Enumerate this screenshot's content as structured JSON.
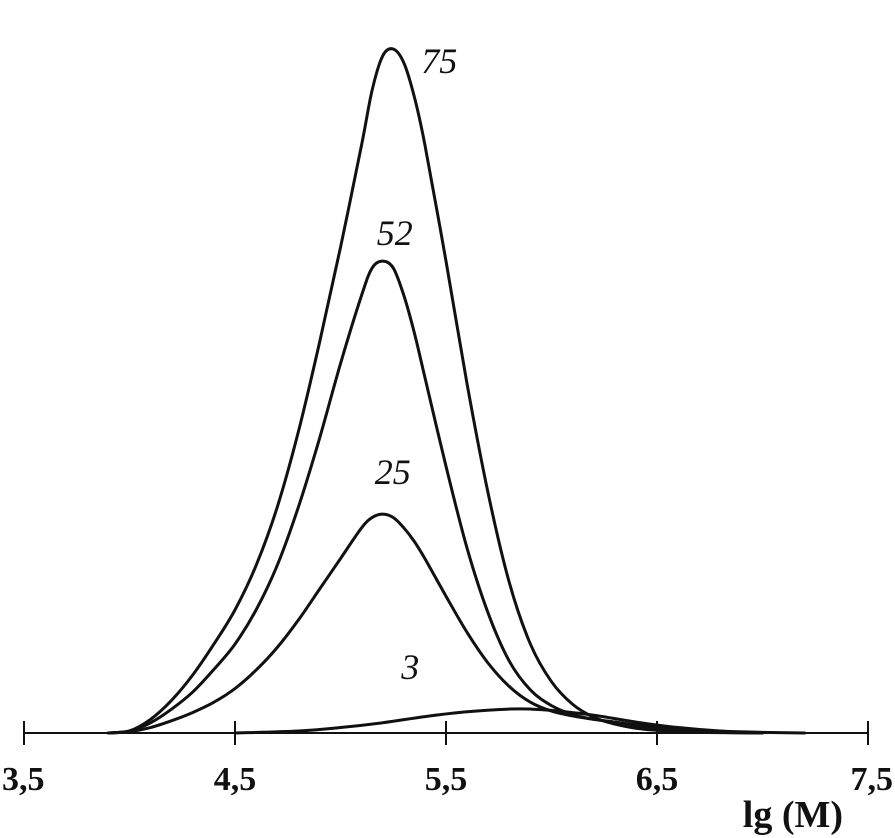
{
  "chart_data": {
    "type": "line",
    "title": "",
    "xlabel": "lg (M)",
    "ylabel": "",
    "xlim": [
      3.5,
      7.5
    ],
    "ylim": [
      0,
      1.06
    ],
    "x_ticks": [
      3.5,
      4.5,
      5.5,
      6.5,
      7.5
    ],
    "x_tick_labels": [
      "3,5",
      "4,5",
      "5,5",
      "6,5",
      "7,5"
    ],
    "grid": false,
    "legend": "none",
    "series": [
      {
        "name": "75",
        "x": [
          3.9,
          4.0,
          4.1,
          4.2,
          4.3,
          4.4,
          4.5,
          4.6,
          4.7,
          4.8,
          4.9,
          5.0,
          5.1,
          5.15,
          5.2,
          5.25,
          5.3,
          5.35,
          5.4,
          5.5,
          5.6,
          5.7,
          5.8,
          5.9,
          6.0,
          6.1,
          6.2,
          6.3,
          6.4,
          6.5,
          6.6,
          6.7,
          6.8,
          7.0
        ],
        "y": [
          0.0,
          0.003,
          0.02,
          0.048,
          0.085,
          0.13,
          0.18,
          0.245,
          0.33,
          0.44,
          0.57,
          0.71,
          0.86,
          0.94,
          0.99,
          1.0,
          0.98,
          0.93,
          0.86,
          0.69,
          0.51,
          0.35,
          0.22,
          0.13,
          0.075,
          0.042,
          0.023,
          0.013,
          0.007,
          0.004,
          0.002,
          0.001,
          0.0005,
          0.0
        ]
      },
      {
        "name": "52",
        "x": [
          3.9,
          4.0,
          4.1,
          4.2,
          4.3,
          4.4,
          4.5,
          4.6,
          4.7,
          4.8,
          4.9,
          5.0,
          5.1,
          5.15,
          5.2,
          5.25,
          5.3,
          5.35,
          5.4,
          5.5,
          5.6,
          5.7,
          5.8,
          5.9,
          6.0,
          6.1,
          6.2,
          6.3,
          6.4,
          6.5,
          6.6,
          6.7,
          6.8,
          7.0
        ],
        "y": [
          0.0,
          0.003,
          0.015,
          0.035,
          0.06,
          0.093,
          0.13,
          0.18,
          0.245,
          0.33,
          0.43,
          0.54,
          0.64,
          0.68,
          0.69,
          0.68,
          0.64,
          0.585,
          0.52,
          0.39,
          0.27,
          0.175,
          0.105,
          0.063,
          0.04,
          0.027,
          0.02,
          0.016,
          0.012,
          0.009,
          0.005,
          0.003,
          0.0015,
          0.0
        ]
      },
      {
        "name": "25",
        "x": [
          3.9,
          4.0,
          4.1,
          4.2,
          4.3,
          4.4,
          4.5,
          4.6,
          4.7,
          4.8,
          4.9,
          5.0,
          5.1,
          5.15,
          5.2,
          5.25,
          5.3,
          5.35,
          5.4,
          5.5,
          5.6,
          5.7,
          5.8,
          5.9,
          6.0,
          6.1,
          6.2,
          6.3,
          6.4,
          6.5,
          6.6,
          6.7,
          6.8,
          7.0
        ],
        "y": [
          0.0,
          0.002,
          0.008,
          0.018,
          0.03,
          0.045,
          0.065,
          0.092,
          0.125,
          0.165,
          0.21,
          0.255,
          0.3,
          0.315,
          0.32,
          0.315,
          0.3,
          0.28,
          0.255,
          0.2,
          0.147,
          0.102,
          0.068,
          0.045,
          0.032,
          0.025,
          0.02,
          0.016,
          0.011,
          0.007,
          0.004,
          0.002,
          0.001,
          0.0
        ]
      },
      {
        "name": "3",
        "x": [
          4.5,
          4.8,
          5.0,
          5.2,
          5.4,
          5.6,
          5.8,
          5.9,
          6.0,
          6.2,
          6.4,
          6.6,
          6.8,
          7.0,
          7.2
        ],
        "y": [
          0.0,
          0.003,
          0.008,
          0.015,
          0.024,
          0.031,
          0.035,
          0.035,
          0.033,
          0.026,
          0.016,
          0.008,
          0.003,
          0.001,
          0.0
        ]
      }
    ]
  }
}
